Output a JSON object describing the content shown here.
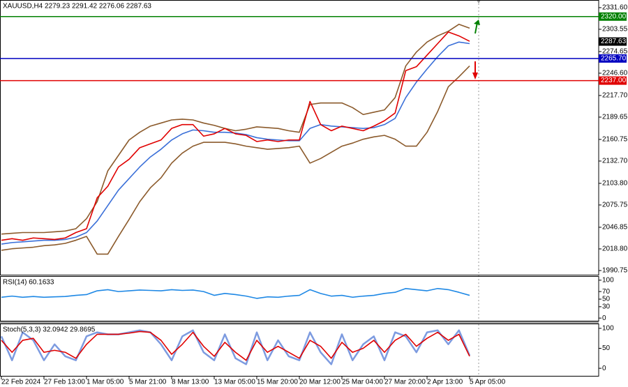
{
  "chart_data": [
    {
      "type": "line",
      "title": "XAUUSD,H4  2279.23 2291.42 2276.06 2287.63",
      "categories": [
        "22 Feb 2024",
        null,
        null,
        null,
        "27 Feb 13:00",
        null,
        null,
        null,
        "1 Mar 05:00",
        null,
        null,
        null,
        "5 Mar 21:00",
        null,
        null,
        null,
        "8 Mar 13:00",
        null,
        null,
        null,
        "13 Mar 05:00",
        null,
        null,
        null,
        "15 Mar 20:00",
        null,
        null,
        null,
        "20 Mar 12:00",
        null,
        null,
        null,
        "25 Mar 04:00",
        null,
        null,
        null,
        "27 Mar 20:00",
        null,
        null,
        null,
        "2 Apr 13:00",
        null,
        null,
        null,
        "5 Apr 05:00"
      ],
      "series": [
        {
          "color": "#8b5a2b",
          "values": [
            2038,
            2039,
            2040,
            2040,
            2040,
            2041,
            2042,
            2045,
            2058,
            2080,
            2120,
            2140,
            2160,
            2170,
            2178,
            2182,
            2186,
            2187,
            2186,
            2182,
            2179,
            2175,
            2172,
            2174,
            2177,
            2176,
            2175,
            2172,
            2170,
            2206,
            2208,
            2208,
            2208,
            2202,
            2193,
            2196,
            2199,
            2215,
            2256,
            2274,
            2287,
            2295,
            2301,
            2310,
            2305
          ]
        },
        {
          "color": "#8b5a2b",
          "values": [
            2017,
            2019,
            2020,
            2021,
            2023,
            2024,
            2026,
            2030,
            2035,
            2012,
            2012,
            2035,
            2057,
            2080,
            2098,
            2111,
            2130,
            2143,
            2152,
            2157,
            2157,
            2157,
            2155,
            2152,
            2150,
            2148,
            2149,
            2150,
            2152,
            2130,
            2136,
            2144,
            2152,
            2156,
            2161,
            2164,
            2166,
            2161,
            2152,
            2152,
            2170,
            2197,
            2229,
            2242,
            2256
          ]
        },
        {
          "color": "#3a6fd8",
          "values": [
            2025,
            2027,
            2028,
            2029,
            2030,
            2030,
            2031,
            2034,
            2040,
            2055,
            2075,
            2095,
            2110,
            2125,
            2138,
            2148,
            2160,
            2168,
            2173,
            2172,
            2170,
            2170,
            2169,
            2167,
            2163,
            2161,
            2160,
            2159,
            2159,
            2175,
            2180,
            2178,
            2177,
            2176,
            2175,
            2176,
            2180,
            2188,
            2215,
            2235,
            2252,
            2268,
            2282,
            2287,
            2285
          ]
        },
        {
          "color": "#e00000",
          "values": [
            2030,
            2032,
            2030,
            2033,
            2032,
            2031,
            2033,
            2040,
            2045,
            2085,
            2100,
            2125,
            2135,
            2150,
            2155,
            2160,
            2175,
            2180,
            2180,
            2165,
            2168,
            2175,
            2168,
            2166,
            2158,
            2160,
            2158,
            2160,
            2160,
            2210,
            2180,
            2172,
            2178,
            2175,
            2172,
            2178,
            2185,
            2195,
            2250,
            2255,
            2270,
            2285,
            2300,
            2295,
            2288
          ]
        }
      ],
      "ylim": [
        1984.4,
        2341.5
      ],
      "yticks": [
        {
          "value": 2331.6,
          "label": "2331.60"
        },
        2303.55,
        2274.65,
        {
          "value": 2246.6,
          "label": "2246.60"
        },
        {
          "value": 2217.7,
          "label": "2217.70"
        },
        2189.65,
        2160.75,
        {
          "value": 2132.7,
          "label": "2132.70"
        },
        {
          "value": 2103.8,
          "label": "2103.80"
        },
        2075.75,
        2046.85,
        {
          "value": 2018.8,
          "label": "2018.80"
        },
        1990.75
      ],
      "levels": [
        {
          "value": 2320,
          "label": "2320.00",
          "color": "#008000"
        },
        {
          "value": 2265.7,
          "label": "2265.70",
          "color": "#0000c0"
        },
        {
          "value": 2237,
          "label": "2237.00",
          "color": "#e00000"
        }
      ],
      "current_price": {
        "value": 2287.63,
        "label": "2287.63",
        "color": "#000000"
      }
    },
    {
      "type": "line",
      "title": "RSI(14) 60.1633",
      "series": [
        {
          "color": "#1e88e5",
          "values": [
            55,
            58,
            55,
            57,
            55,
            56,
            57,
            60,
            62,
            72,
            75,
            70,
            72,
            74,
            73,
            72,
            75,
            73,
            74,
            70,
            60,
            65,
            62,
            58,
            52,
            56,
            55,
            58,
            60,
            75,
            65,
            58,
            60,
            55,
            58,
            60,
            65,
            68,
            78,
            75,
            72,
            78,
            75,
            68,
            60
          ]
        }
      ],
      "ylim": [
        -8.9,
        110.7
      ],
      "yticks": [
        100,
        70,
        50,
        30,
        0
      ]
    },
    {
      "type": "line",
      "title": "Stoch(5,3,3) 32.0942 29.8695",
      "series": [
        {
          "color": "#7d9be0",
          "values": [
            80,
            20,
            90,
            70,
            20,
            60,
            30,
            20,
            80,
            90,
            85,
            85,
            90,
            95,
            90,
            60,
            20,
            80,
            95,
            40,
            20,
            85,
            25,
            10,
            90,
            20,
            70,
            30,
            20,
            90,
            40,
            10,
            85,
            20,
            60,
            80,
            20,
            90,
            80,
            40,
            90,
            95,
            60,
            95,
            32
          ]
        },
        {
          "color": "#e00000",
          "values": [
            70,
            40,
            70,
            75,
            40,
            45,
            40,
            25,
            60,
            85,
            85,
            85,
            88,
            92,
            90,
            70,
            35,
            60,
            90,
            55,
            30,
            65,
            40,
            20,
            70,
            40,
            55,
            40,
            25,
            70,
            55,
            25,
            65,
            40,
            50,
            70,
            40,
            70,
            85,
            55,
            75,
            90,
            70,
            85,
            30
          ]
        }
      ],
      "ylim": [
        -20.7,
        112
      ],
      "yticks": [
        100,
        50,
        0
      ]
    }
  ]
}
